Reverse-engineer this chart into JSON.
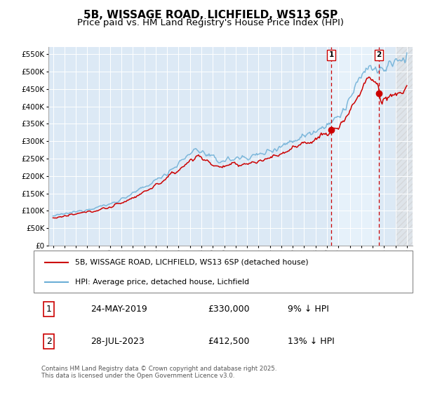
{
  "title": "5B, WISSAGE ROAD, LICHFIELD, WS13 6SP",
  "subtitle": "Price paid vs. HM Land Registry's House Price Index (HPI)",
  "ylim": [
    0,
    570000
  ],
  "yticks": [
    0,
    50000,
    100000,
    150000,
    200000,
    250000,
    300000,
    350000,
    400000,
    450000,
    500000,
    550000
  ],
  "x_start_year": 1995,
  "x_end_year": 2026,
  "sale1_date": 2019.38,
  "sale1_price": 330000,
  "sale1_label": "1",
  "sale2_date": 2023.55,
  "sale2_price": 412500,
  "sale2_label": "2",
  "hpi_color": "#6baed6",
  "price_color": "#cc0000",
  "vline_color": "#cc0000",
  "background_color": "#dce9f5",
  "grid_color": "#ffffff",
  "shade_color": "#dce9f5",
  "legend_label_price": "5B, WISSAGE ROAD, LICHFIELD, WS13 6SP (detached house)",
  "legend_label_hpi": "HPI: Average price, detached house, Lichfield",
  "footer": "Contains HM Land Registry data © Crown copyright and database right 2025.\nThis data is licensed under the Open Government Licence v3.0.",
  "title_fontsize": 11,
  "subtitle_fontsize": 9.5
}
